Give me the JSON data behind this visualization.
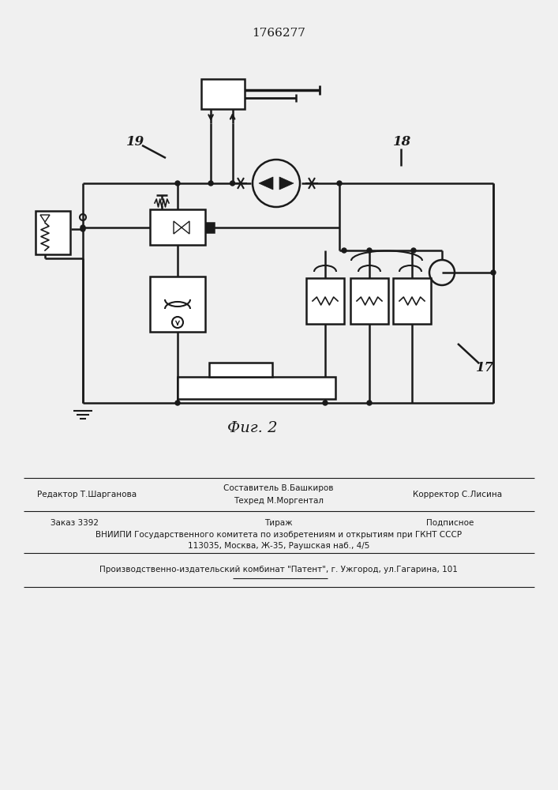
{
  "title": "1766277",
  "fig_label": "Фиг. 2",
  "label_19": "19",
  "label_18": "18",
  "label_17": "17",
  "bg_color": "#f0f0f0",
  "line_color": "#1a1a1a",
  "text_color": "#1a1a1a",
  "footer_line1_left": "Редактор Т.Шарганова",
  "footer_line1_center": "Составитель В.Башкиров",
  "footer_line1_right": "Корректор С.Лисина",
  "footer_line1_center2": "Техред М.Моргентал",
  "footer_line2_left": "Заказ 3392",
  "footer_line2_center": "Тираж",
  "footer_line2_right": "Подписное",
  "footer_line3": "ВНИИПИ Государственного комитета по изобретениям и открытиям при ГКНТ СССР",
  "footer_line4": "113035, Москва, Ж-35, Раушская наб., 4/5",
  "footer_line5": "Производственно-издательский комбинат \"Патент\", г. Ужгород, ул.Гагарина, 101"
}
